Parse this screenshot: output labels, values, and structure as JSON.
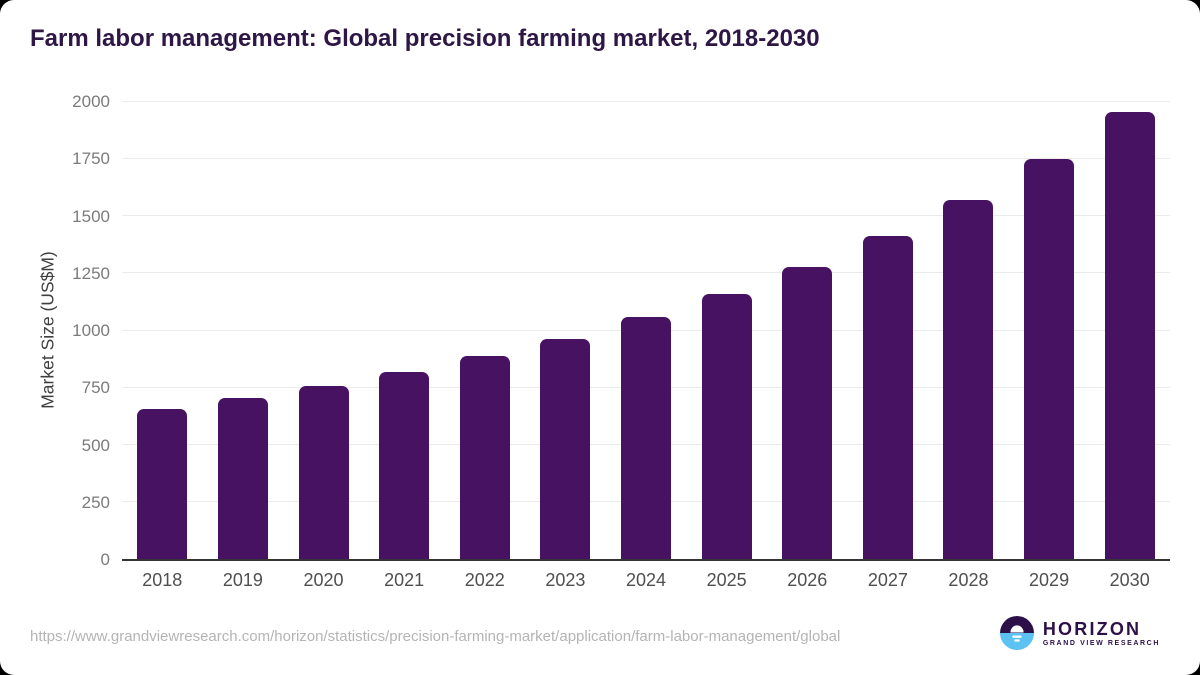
{
  "page": {
    "title": "Farm labor management: Global precision farming market, 2018-2030",
    "source_url": "https://www.grandviewresearch.com/horizon/statistics/precision-farming-market/application/farm-labor-management/global"
  },
  "logo": {
    "name": "HORIZON",
    "subtitle": "GRAND VIEW RESEARCH"
  },
  "chart_data": {
    "type": "bar",
    "title": "Farm labor management: Global precision farming market, 2018-2030",
    "categories": [
      "2018",
      "2019",
      "2020",
      "2021",
      "2022",
      "2023",
      "2024",
      "2025",
      "2026",
      "2027",
      "2028",
      "2029",
      "2030"
    ],
    "values": [
      656,
      705,
      757,
      818,
      886,
      961,
      1056,
      1158,
      1275,
      1410,
      1566,
      1745,
      1953
    ],
    "xlabel": "",
    "ylabel": "Market Size (US$M)",
    "ylim": [
      0,
      2000
    ],
    "ytick_interval": 250,
    "grid": true,
    "legend": "none",
    "bar_color": "#461261"
  },
  "colors": {
    "bar": "#461261",
    "title": "#2e1745",
    "gridline": "#ebebeb",
    "axis_line": "#343434",
    "ytick_label": "#7b7b7b",
    "xtick_label": "#4f4f4f",
    "url_text": "#b4b4b4",
    "logo_purple": "#2d1048",
    "logo_blue": "#5cc2f2"
  }
}
